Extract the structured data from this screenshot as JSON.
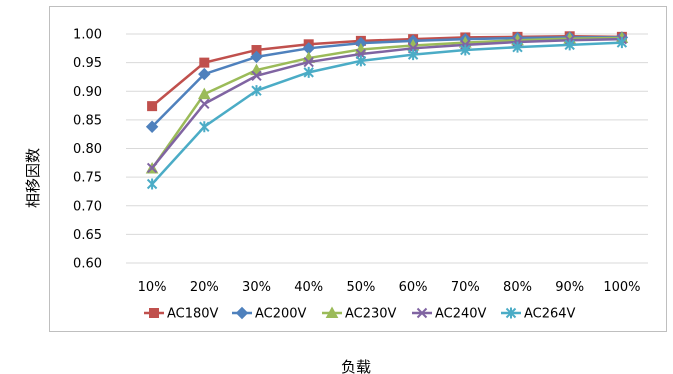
{
  "chart_data": {
    "type": "line",
    "title": "",
    "xlabel": "负载",
    "ylabel": "相移因数",
    "categories": [
      "10%",
      "20%",
      "30%",
      "40%",
      "50%",
      "60%",
      "70%",
      "80%",
      "90%",
      "100%"
    ],
    "ylim": [
      0.6,
      1.0
    ],
    "yticks": [
      "0.60",
      "0.65",
      "0.70",
      "0.75",
      "0.80",
      "0.85",
      "0.90",
      "0.95",
      "1.00"
    ],
    "grid": "horizontal",
    "legend": "bottom",
    "series": [
      {
        "name": "AC180V",
        "color": "#c0504d",
        "marker": "square",
        "values": [
          0.874,
          0.95,
          0.972,
          0.982,
          0.988,
          0.991,
          0.994,
          0.995,
          0.996,
          0.995
        ]
      },
      {
        "name": "AC200V",
        "color": "#4f81bd",
        "marker": "diamond",
        "values": [
          0.838,
          0.93,
          0.96,
          0.975,
          0.984,
          0.988,
          0.991,
          0.993,
          0.994,
          0.994
        ]
      },
      {
        "name": "AC230V",
        "color": "#9bbb59",
        "marker": "triangle",
        "values": [
          0.765,
          0.895,
          0.937,
          0.958,
          0.973,
          0.98,
          0.985,
          0.989,
          0.992,
          0.993
        ]
      },
      {
        "name": "AC240V",
        "color": "#8064a2",
        "marker": "x",
        "values": [
          0.766,
          0.878,
          0.927,
          0.951,
          0.965,
          0.975,
          0.981,
          0.986,
          0.989,
          0.991
        ]
      },
      {
        "name": "AC264V",
        "color": "#4bacc6",
        "marker": "star",
        "values": [
          0.738,
          0.838,
          0.901,
          0.933,
          0.953,
          0.964,
          0.972,
          0.977,
          0.981,
          0.985
        ]
      }
    ]
  }
}
